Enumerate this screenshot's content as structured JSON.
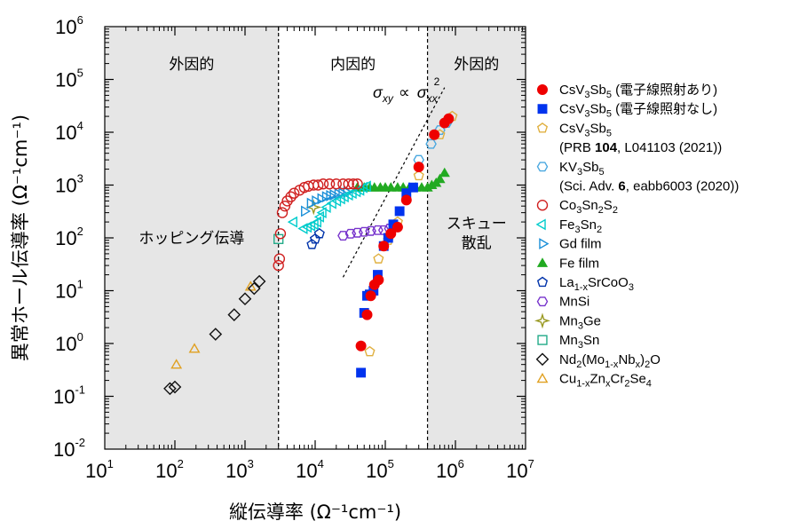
{
  "chart_data": {
    "type": "scatter",
    "xlabel": "縦伝導率 (Ω⁻¹cm⁻¹)",
    "ylabel": "異常ホール伝導率 (Ω⁻¹cm⁻¹)",
    "xscale": "log",
    "yscale": "log",
    "xlim": [
      10,
      10000000
    ],
    "ylim": [
      0.01,
      1000000
    ],
    "x_ticks": [
      "10",
      "10",
      "10",
      "10",
      "10",
      "10",
      "10"
    ],
    "x_tick_exponents": [
      "1",
      "2",
      "3",
      "4",
      "5",
      "6",
      "7"
    ],
    "y_ticks": [
      "10",
      "10",
      "10",
      "10",
      "10",
      "10",
      "10",
      "10",
      "10"
    ],
    "y_tick_exponents": [
      "-2",
      "-1",
      "0",
      "1",
      "2",
      "3",
      "4",
      "5",
      "6"
    ],
    "regions": {
      "boundaries_x": [
        3000,
        400000
      ],
      "top_labels": [
        "外因的",
        "内因的",
        "外因的"
      ],
      "side_labels": [
        "ホッピング伝導",
        "スキュー",
        "散乱"
      ],
      "shaded": [
        true,
        false,
        true
      ]
    },
    "scaling_line": {
      "label_sigma": "σ",
      "label_xy": "xy",
      "label_propto": "∝",
      "label_xx": "xx",
      "label_exp": "2",
      "x": [
        25000,
        700000
      ],
      "y": [
        18,
        70000
      ]
    },
    "series": [
      {
        "name": "CsV3Sb5 (電子線照射あり)",
        "legend": [
          "CsV",
          "3",
          "Sb",
          "5",
          " (電子線照射あり)"
        ],
        "marker": "circle",
        "filled": true,
        "color": "#ee0000",
        "x": [
          45000,
          55000,
          62000,
          70000,
          80000,
          95000,
          120000,
          150000,
          200000,
          300000,
          500000,
          700000,
          800000
        ],
        "y": [
          0.9,
          3.5,
          8,
          13,
          16,
          70,
          120,
          160,
          520,
          2200,
          9000,
          15000,
          18000
        ]
      },
      {
        "name": "CsV3Sb5 (電子線照射なし)",
        "legend": [
          "CsV",
          "3",
          "Sb",
          "5",
          " (電子線照射なし)"
        ],
        "marker": "square",
        "filled": true,
        "color": "#0033ee",
        "x": [
          45000,
          50000,
          55000,
          60000,
          68000,
          78000,
          95000,
          110000,
          130000,
          160000,
          200000,
          250000
        ],
        "y": [
          0.28,
          3.8,
          8,
          8.5,
          10,
          20,
          70,
          100,
          180,
          320,
          700,
          900
        ]
      },
      {
        "name": "CsV3Sb5",
        "legend": [
          "CsV",
          "3",
          "Sb",
          "5"
        ],
        "ref": [
          "(PRB ",
          "104",
          ", L041103 (2021))"
        ],
        "marker": "pentagon",
        "filled": false,
        "color": "#e0b040",
        "x": [
          60000,
          80000,
          110000,
          150000,
          300000,
          600000,
          900000
        ],
        "y": [
          0.7,
          40,
          90,
          200,
          1500,
          9000,
          20000
        ]
      },
      {
        "name": "KV3Sb5",
        "legend": [
          "KV",
          "3",
          "Sb",
          "5"
        ],
        "ref": [
          "(Sci. Adv. ",
          "6",
          ", eabb6003 (2020))"
        ],
        "marker": "hexagon",
        "filled": false,
        "color": "#4aa8e0",
        "x": [
          300000,
          450000,
          600000,
          750000
        ],
        "y": [
          3000,
          6000,
          11000,
          15000
        ]
      },
      {
        "name": "Co3Sn2S2",
        "legend": [
          "Co",
          "3",
          "Sn",
          "2",
          "S",
          "2"
        ],
        "marker": "circle",
        "filled": false,
        "color": "#d02020",
        "x": [
          3000,
          3100,
          3200,
          3400,
          3700,
          4000,
          4500,
          5000,
          6000,
          7000,
          8000,
          9500,
          11000,
          13000,
          16000,
          20000,
          25000,
          30000,
          35000,
          40000
        ],
        "y": [
          30,
          40,
          120,
          300,
          400,
          500,
          600,
          700,
          800,
          900,
          950,
          1000,
          1000,
          1050,
          1050,
          1050,
          1050,
          1050,
          1050,
          1050
        ]
      },
      {
        "name": "Fe3Sn2",
        "legend": [
          "Fe",
          "3",
          "Sn",
          "2"
        ],
        "marker": "triangle-left",
        "filled": false,
        "color": "#00cccc",
        "x": [
          5000,
          7000,
          8000,
          9000,
          10000,
          11000,
          12000,
          13000,
          15000,
          18000,
          21000,
          24000,
          27000,
          31000,
          35000,
          40000,
          45000,
          50000,
          56000
        ],
        "y": [
          200,
          150,
          160,
          170,
          180,
          200,
          250,
          300,
          380,
          450,
          500,
          550,
          600,
          650,
          700,
          750,
          800,
          900,
          950
        ]
      },
      {
        "name": "Gd film",
        "legend": [
          "Gd film"
        ],
        "marker": "triangle-right",
        "filled": false,
        "color": "#1a8fd8",
        "x": [
          7000,
          8500,
          10000,
          12000,
          14000,
          16000,
          18000,
          21000,
          24000,
          28000
        ],
        "y": [
          320,
          450,
          500,
          550,
          600,
          630,
          650,
          680,
          700,
          730
        ]
      },
      {
        "name": "Fe film",
        "legend": [
          "Fe film"
        ],
        "marker": "triangle-up",
        "filled": true,
        "color": "#22aa22",
        "x": [
          40000,
          50000,
          60000,
          70000,
          85000,
          100000,
          120000,
          150000,
          180000,
          220000,
          270000,
          330000,
          400000,
          460000,
          530000,
          600000,
          700000
        ],
        "y": [
          900,
          900,
          900,
          900,
          900,
          900,
          900,
          900,
          900,
          900,
          900,
          900,
          900,
          1000,
          1100,
          1300,
          1700
        ]
      },
      {
        "name": "La1-xSrCoO3",
        "legend": [
          "La",
          "1-x",
          "SrCoO",
          "3"
        ],
        "marker": "pentagon",
        "filled": false,
        "color": "#0033aa",
        "x": [
          9000,
          10000,
          11500
        ],
        "y": [
          75,
          95,
          120
        ]
      },
      {
        "name": "MnSi",
        "legend": [
          "MnSi"
        ],
        "marker": "hexagon",
        "filled": false,
        "color": "#7733cc",
        "x": [
          25000,
          32000,
          40000,
          50000,
          62000,
          78000,
          95000,
          115000,
          140000
        ],
        "y": [
          110,
          120,
          125,
          130,
          135,
          140,
          140,
          150,
          160
        ]
      },
      {
        "name": "Mn3Ge",
        "legend": [
          "Mn",
          "3",
          "Ge"
        ],
        "marker": "star",
        "filled": false,
        "color": "#999922",
        "x": [
          9500
        ],
        "y": [
          380
        ]
      },
      {
        "name": "Mn3Sn",
        "legend": [
          "Mn",
          "3",
          "Sn"
        ],
        "marker": "square",
        "filled": false,
        "color": "#22aa88",
        "x": [
          3000
        ],
        "y": [
          95
        ]
      },
      {
        "name": "Nd2(Mo1-xNbx)2O",
        "legend": [
          "Nd",
          "2",
          "(Mo",
          "1-x",
          "Nb",
          "x",
          ")",
          "2",
          "O"
        ],
        "marker": "diamond",
        "filled": false,
        "color": "#111111",
        "x": [
          85,
          100,
          380,
          700,
          1000,
          1350,
          1600
        ],
        "y": [
          0.14,
          0.15,
          1.5,
          3.5,
          7,
          11,
          15
        ]
      },
      {
        "name": "Cu1-xZnxCr2Se4",
        "legend": [
          "Cu",
          "1-x",
          "Zn",
          "x",
          "Cr",
          "2",
          "Se",
          "4"
        ],
        "marker": "triangle-up",
        "filled": false,
        "color": "#e0a020",
        "x": [
          105,
          190,
          1200
        ],
        "y": [
          0.4,
          0.8,
          12
        ]
      }
    ]
  }
}
